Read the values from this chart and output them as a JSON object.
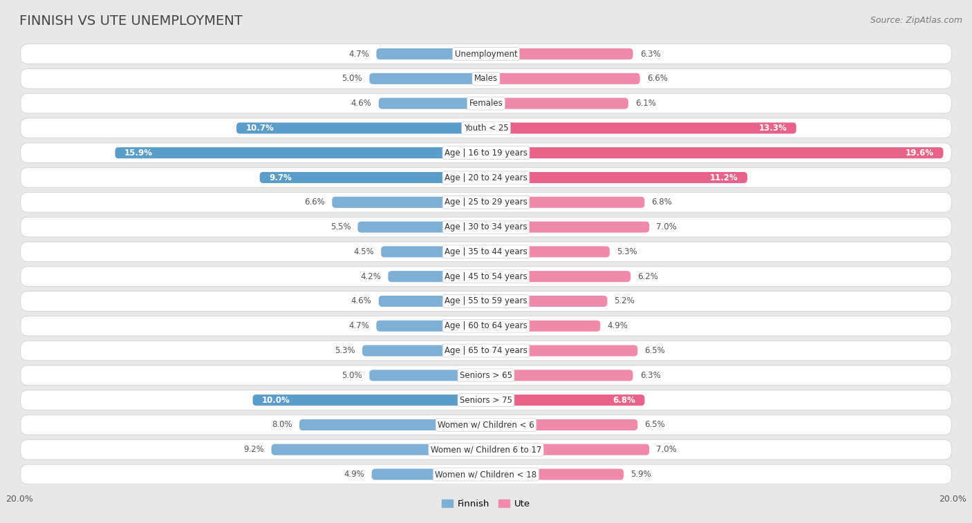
{
  "title": "FINNISH VS UTE UNEMPLOYMENT",
  "source": "Source: ZipAtlas.com",
  "categories": [
    "Unemployment",
    "Males",
    "Females",
    "Youth < 25",
    "Age | 16 to 19 years",
    "Age | 20 to 24 years",
    "Age | 25 to 29 years",
    "Age | 30 to 34 years",
    "Age | 35 to 44 years",
    "Age | 45 to 54 years",
    "Age | 55 to 59 years",
    "Age | 60 to 64 years",
    "Age | 65 to 74 years",
    "Seniors > 65",
    "Seniors > 75",
    "Women w/ Children < 6",
    "Women w/ Children 6 to 17",
    "Women w/ Children < 18"
  ],
  "finnish_values": [
    4.7,
    5.0,
    4.6,
    10.7,
    15.9,
    9.7,
    6.6,
    5.5,
    4.5,
    4.2,
    4.6,
    4.7,
    5.3,
    5.0,
    10.0,
    8.0,
    9.2,
    4.9
  ],
  "ute_values": [
    6.3,
    6.6,
    6.1,
    13.3,
    19.6,
    11.2,
    6.8,
    7.0,
    5.3,
    6.2,
    5.2,
    4.9,
    6.5,
    6.3,
    6.8,
    6.5,
    7.0,
    5.9
  ],
  "finnish_color": "#7eb0d5",
  "ute_color": "#f08aaa",
  "finnish_highlight_color": "#5b9dc9",
  "ute_highlight_color": "#e8628a",
  "highlight_rows": [
    3,
    4,
    5,
    14
  ],
  "x_max": 20.0,
  "page_bg": "#e8e8e8",
  "row_bg": "#ffffff",
  "row_border": "#cccccc",
  "legend_finnish": "Finnish",
  "legend_ute": "Ute",
  "title_fontsize": 14,
  "source_fontsize": 9,
  "label_fontsize": 8.5,
  "value_fontsize": 8.5
}
